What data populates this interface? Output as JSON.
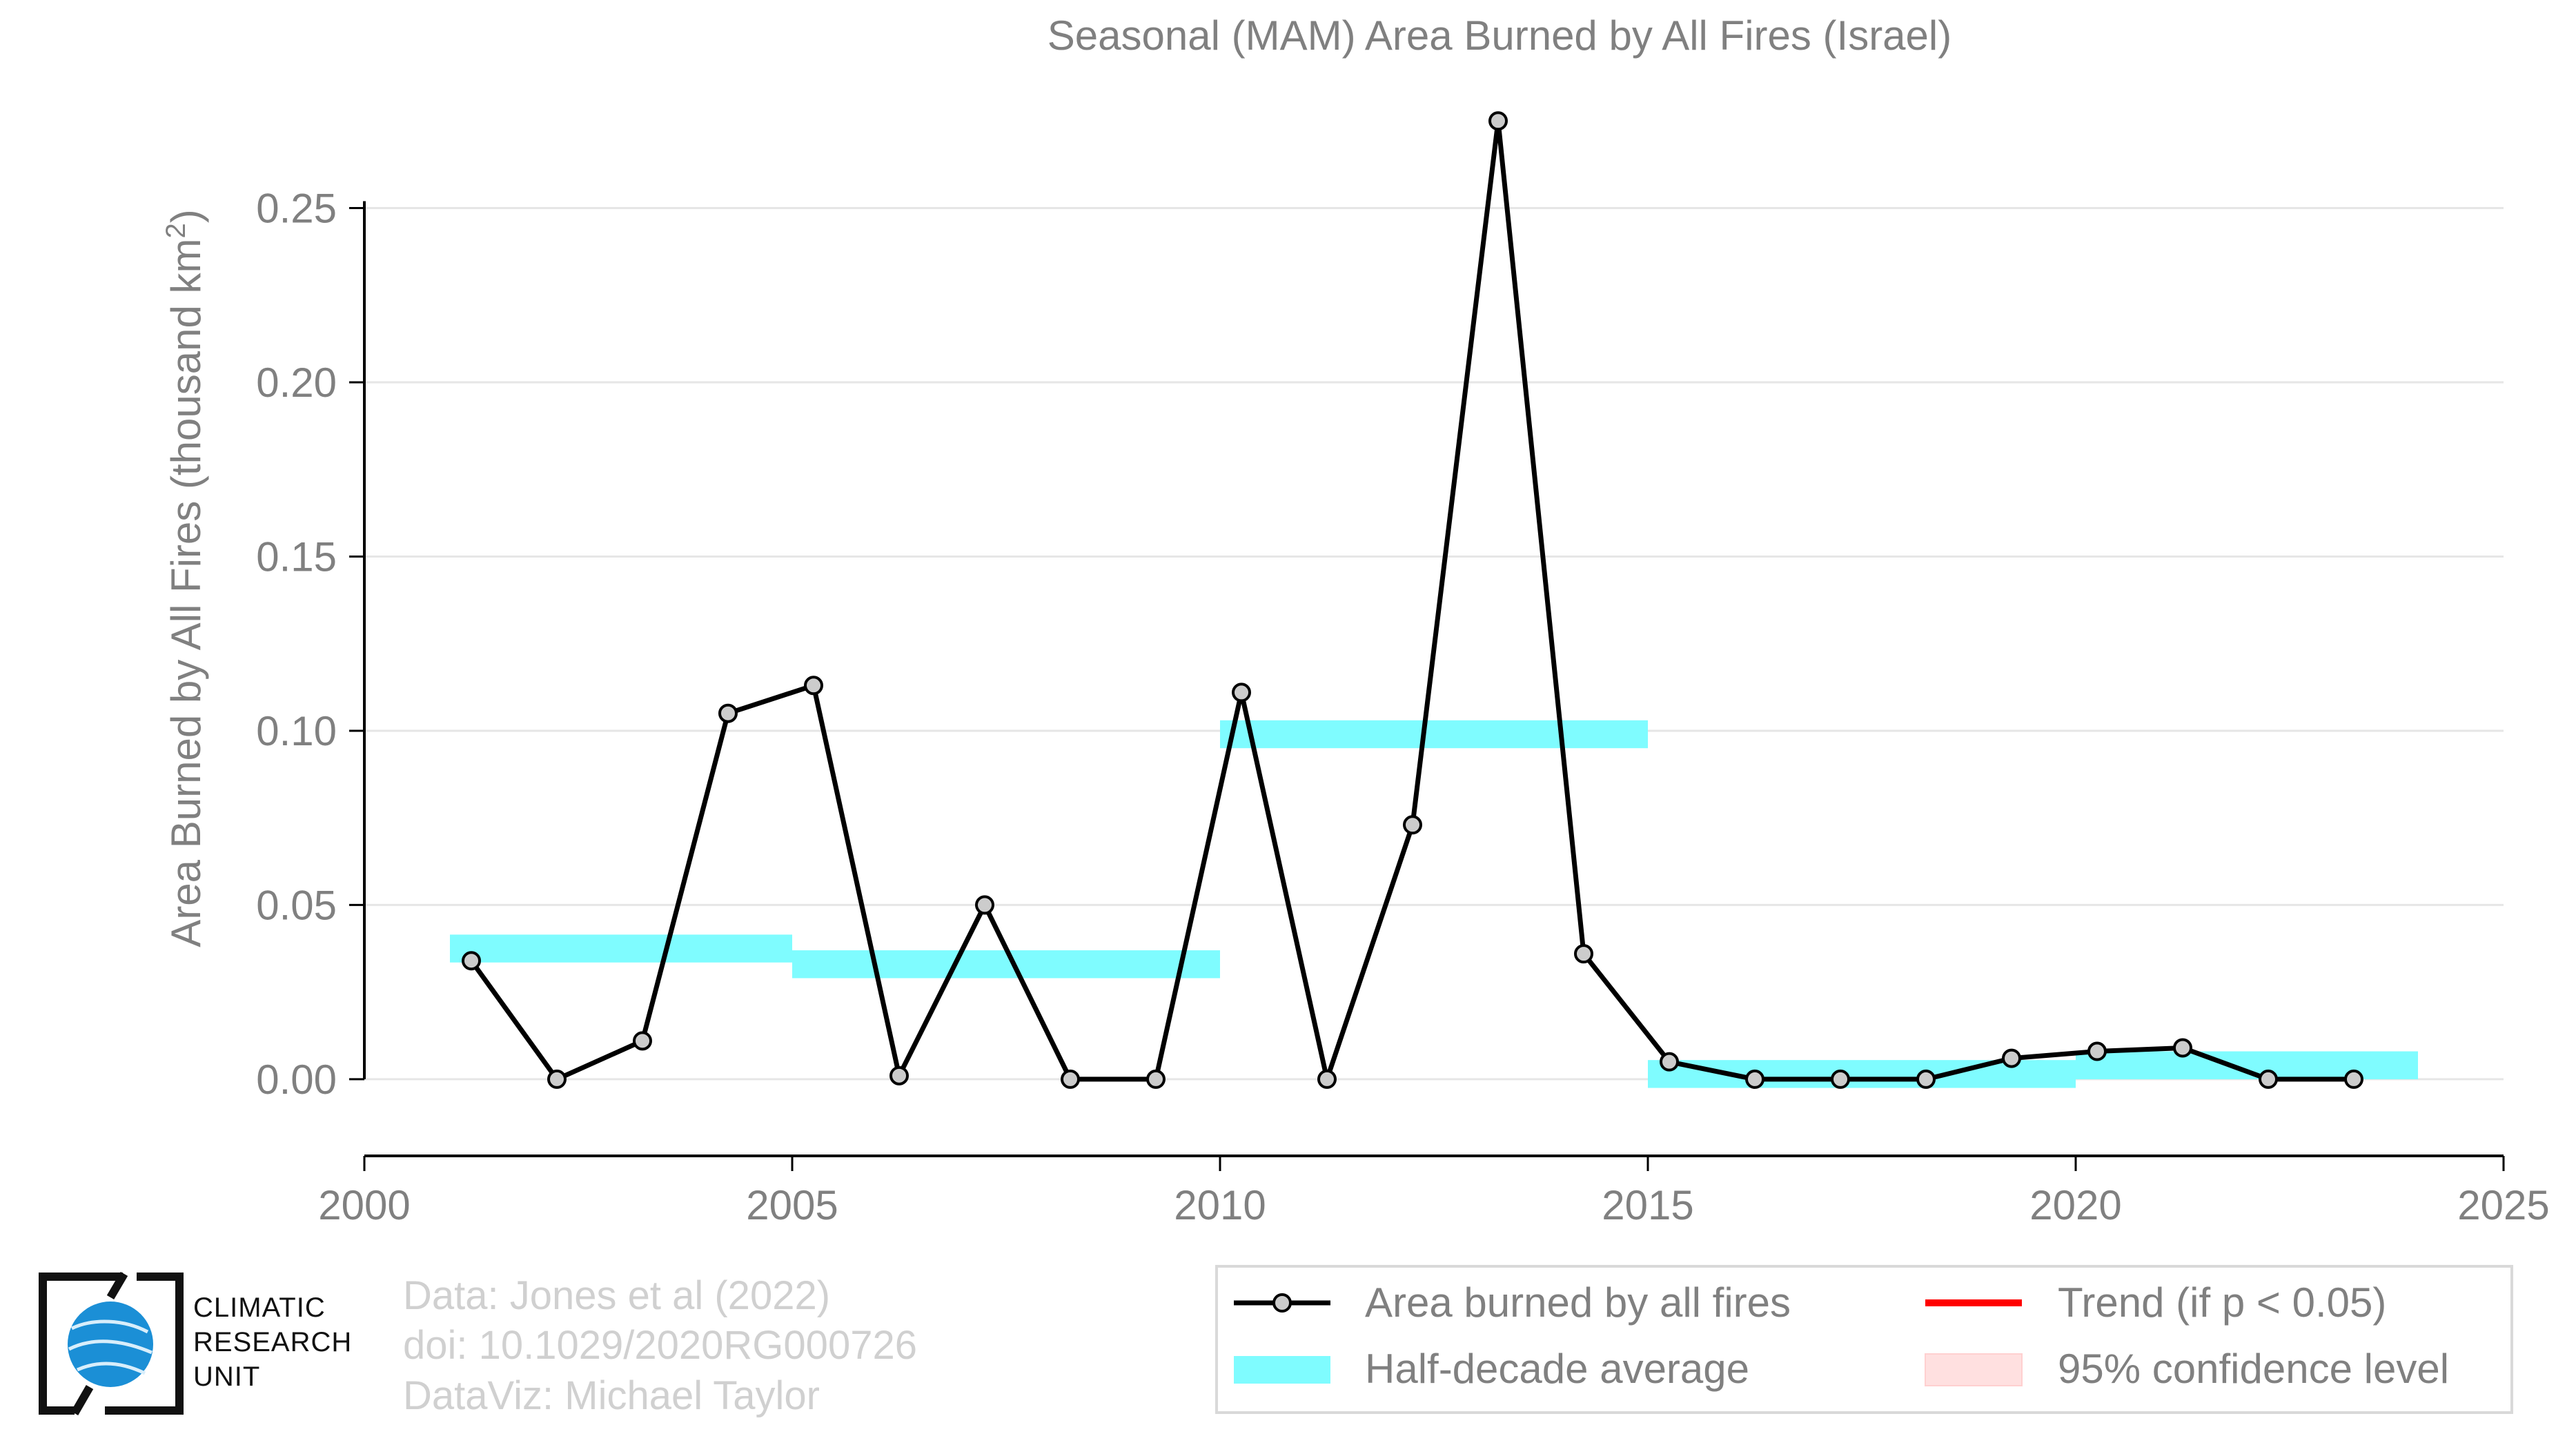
{
  "chart_data": {
    "type": "line",
    "title": "Seasonal (MAM) Area Burned by All Fires (Israel)",
    "xlabel": "",
    "ylabel": "Area Burned by All Fires (thousand km",
    "ylabel_sup": "2",
    "ylabel_end": ")",
    "xlim": [
      2000,
      2025
    ],
    "ylim": [
      -0.022,
      0.28
    ],
    "grid": true,
    "x_ticks": [
      2000,
      2005,
      2010,
      2015,
      2020,
      2025
    ],
    "x_tick_labels": [
      "2000",
      "2005",
      "2010",
      "2015",
      "2020",
      "2025"
    ],
    "y_ticks": [
      0.0,
      0.05,
      0.1,
      0.15,
      0.2,
      0.25
    ],
    "y_tick_labels": [
      "0.00",
      "0.05",
      "0.10",
      "0.15",
      "0.20",
      "0.25"
    ],
    "series": [
      {
        "name": "Area burned by all fires",
        "color": "#000000",
        "x": [
          2001.25,
          2002.25,
          2003.25,
          2004.25,
          2005.25,
          2006.25,
          2007.25,
          2008.25,
          2009.25,
          2010.25,
          2011.25,
          2012.25,
          2013.25,
          2014.25,
          2015.25,
          2016.25,
          2017.25,
          2018.25,
          2019.25,
          2020.25,
          2021.25,
          2022.25,
          2023.25
        ],
        "y": [
          0.034,
          0.0,
          0.011,
          0.105,
          0.113,
          0.001,
          0.05,
          0.0,
          0.0,
          0.111,
          0.0,
          0.073,
          0.275,
          0.036,
          0.005,
          0.0,
          0.0,
          0.0,
          0.006,
          0.008,
          0.009,
          0.0,
          0.0
        ]
      }
    ],
    "half_decade_averages": {
      "name": "Half-decade average",
      "color": "#7ffcff",
      "segments": [
        {
          "x_start": 2001,
          "x_end": 2005,
          "value": 0.0375
        },
        {
          "x_start": 2005,
          "x_end": 2010,
          "value": 0.033
        },
        {
          "x_start": 2010,
          "x_end": 2015,
          "value": 0.099
        },
        {
          "x_start": 2015,
          "x_end": 2020,
          "value": 0.0015
        },
        {
          "x_start": 2020,
          "x_end": 2024,
          "value": 0.004
        }
      ]
    },
    "legend": {
      "placement": "bottom-right",
      "entries": [
        {
          "label": "Area burned by all fires",
          "kind": "line-marker",
          "color": "#000000"
        },
        {
          "label": "Trend (if p < 0.05)",
          "kind": "line",
          "color": "#ff0000"
        },
        {
          "label": "Half-decade average",
          "kind": "band",
          "color": "#7ffcff"
        },
        {
          "label": "95% confidence level",
          "kind": "band",
          "color": "#ffe0e0"
        }
      ]
    }
  },
  "credits": {
    "line1": "Data: Jones et al (2022)",
    "line2": "doi: 10.1029/2020RG000726",
    "line3": "DataViz: Michael Taylor"
  },
  "logo": {
    "line1": "CLIMATIC",
    "line2": "RESEARCH",
    "line3": "UNIT"
  },
  "colors": {
    "axis_text": "#808080",
    "grid": "#e6e6e6",
    "credit_text": "#d0d0d0"
  }
}
